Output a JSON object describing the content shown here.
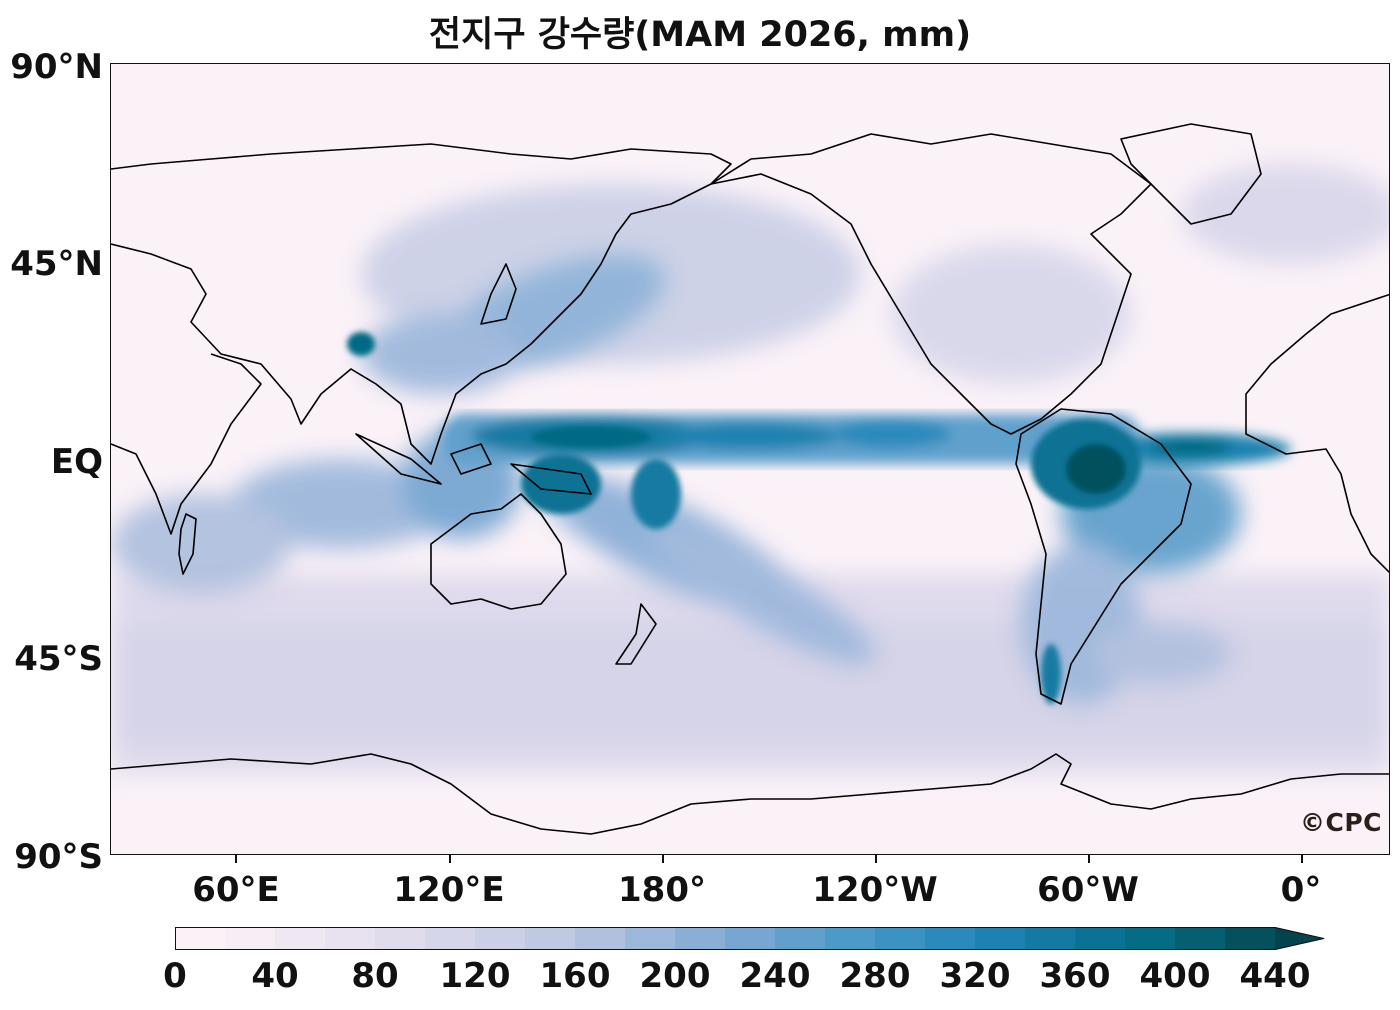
{
  "title": "전지구 강수량(MAM 2026, mm)",
  "credit": "©CPC",
  "map": {
    "projection": "equirectangular",
    "central_longitude": "Pacific-centered",
    "variable": "precipitation",
    "lat_labels": [
      "90°N",
      "45°N",
      "EQ",
      "45°S",
      "90°S"
    ],
    "lon_labels": [
      "60°E",
      "120°E",
      "180°",
      "120°W",
      "60°W",
      "0°"
    ],
    "coastline_color": "#000000"
  },
  "colorbar": {
    "tick_labels": [
      "0",
      "40",
      "80",
      "120",
      "160",
      "200",
      "240",
      "280",
      "320",
      "360",
      "400",
      "440"
    ],
    "extend": "max",
    "colors": [
      "#fbf2f8",
      "#f6edf5",
      "#efe7f1",
      "#e8e1ef",
      "#e1dcec",
      "#d6d6ea",
      "#cbd0e6",
      "#bfc9e2",
      "#b0c0de",
      "#9eb8dc",
      "#8baed7",
      "#76a6d1",
      "#61a0cc",
      "#4b9ac7",
      "#3a93c2",
      "#2a8abc",
      "#1d82b0",
      "#137aa3",
      "#0a7294",
      "#066b84",
      "#055f70",
      "#04515d",
      "#03444c"
    ]
  }
}
